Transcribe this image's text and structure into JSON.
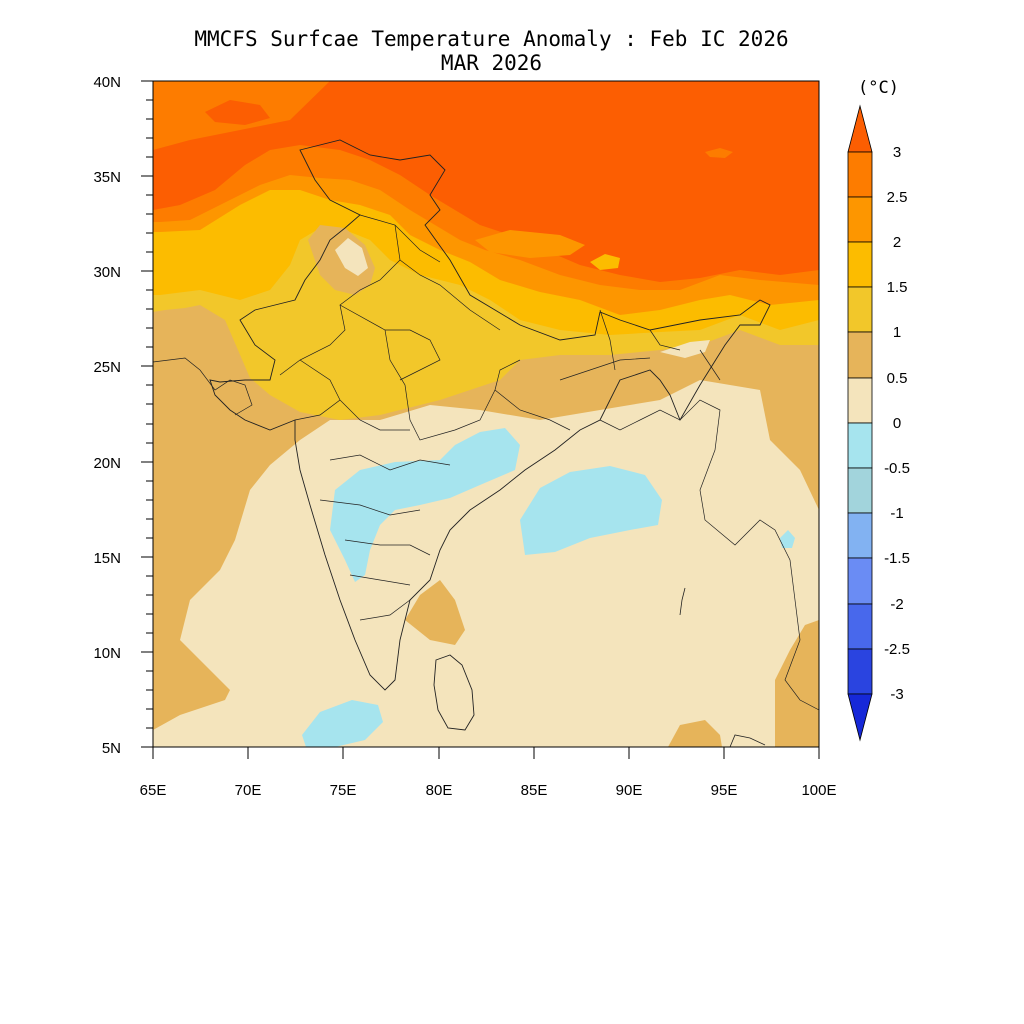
{
  "title": "MMCFS Surfcae Temperature Anomaly : Feb IC 2026",
  "subtitle": "MAR 2026",
  "units_label": "(°C)",
  "lat_labels": [
    "40N",
    "35N",
    "30N",
    "25N",
    "20N",
    "15N",
    "10N",
    "5N"
  ],
  "lon_labels": [
    "65E",
    "70E",
    "75E",
    "80E",
    "85E",
    "90E",
    "95E",
    "100E"
  ],
  "colorbar": {
    "labels": [
      "3",
      "2.5",
      "2",
      "1.5",
      "1",
      "0.5",
      "0",
      "-0.5",
      "-1",
      "-1.5",
      "-2",
      "-2.5",
      "-3"
    ],
    "colors_top_to_bottom": [
      "#fc5e02",
      "#fd7c00",
      "#fd9600",
      "#fcbc00",
      "#f2c72a",
      "#e6b45a",
      "#f4e4bc",
      "#a6e4ee",
      "#a2d4dc",
      "#82b2f2",
      "#6a8cf4",
      "#4868ec",
      "#2a44e0",
      "#1628d8"
    ]
  },
  "map_data": {
    "variable": "Surface temperature anomaly",
    "units": "°C",
    "lat_range": [
      5,
      40
    ],
    "lon_range": [
      65,
      100
    ],
    "region": "India and surroundings",
    "pattern": [
      {
        "area": "Tibetan Plateau / Himalaya (north)",
        "anomaly_range": ">2.5"
      },
      {
        "area": "Indo-Gangetic plain",
        "anomaly_range": "1 to 1.5"
      },
      {
        "area": "Western India / Pakistan",
        "anomaly_range": "0.5 to 1"
      },
      {
        "area": "Peninsular India & oceans",
        "anomaly_range": "0 to 0.5"
      },
      {
        "area": "Central India (Maharashtra/Chhattisgarh)",
        "anomaly_range": "-0.5 to 0"
      },
      {
        "area": "Bay of Bengal (central)",
        "anomaly_range": "-0.5 to 0"
      },
      {
        "area": "Arabian Sea near Lakshadweep",
        "anomaly_range": "-0.5 to 0"
      }
    ]
  }
}
